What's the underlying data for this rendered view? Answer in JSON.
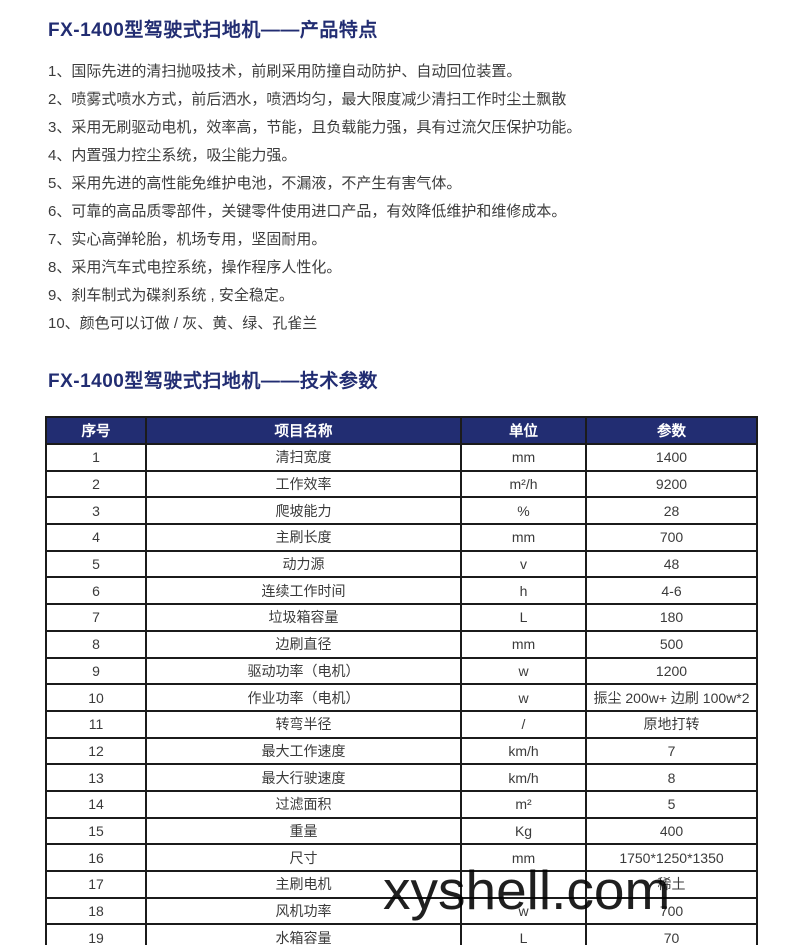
{
  "features": {
    "title": "FX-1400型驾驶式扫地机——产品特点",
    "items": [
      "1、国际先进的清扫抛吸技术，前刷采用防撞自动防护、自动回位装置。",
      "2、喷雾式喷水方式，前后洒水，喷洒均匀，最大限度减少清扫工作时尘土飘散",
      "3、采用无刷驱动电机，效率高，节能，且负载能力强，具有过流欠压保护功能。",
      "4、内置强力控尘系统，吸尘能力强。",
      "5、采用先进的高性能免维护电池，不漏液，不产生有害气体。",
      "6、可靠的高品质零部件，关键零件使用进口产品，有效降低维护和维修成本。",
      "7、实心高弹轮胎，机场专用，坚固耐用。",
      "8、采用汽车式电控系统，操作程序人性化。",
      "9、刹车制式为碟刹系统 , 安全稳定。",
      "10、颜色可以订做 / 灰、黄、绿、孔雀兰"
    ]
  },
  "specs": {
    "title": "FX-1400型驾驶式扫地机——技术参数",
    "table": {
      "headers": [
        "序号",
        "项目名称",
        "单位",
        "参数"
      ],
      "rows": [
        [
          "1",
          "清扫宽度",
          "mm",
          "1400"
        ],
        [
          "2",
          "工作效率",
          "m²/h",
          "9200"
        ],
        [
          "3",
          "爬坡能力",
          "%",
          "28"
        ],
        [
          "4",
          "主刷长度",
          "mm",
          "700"
        ],
        [
          "5",
          "动力源",
          "v",
          "48"
        ],
        [
          "6",
          "连续工作时间",
          "h",
          "4-6"
        ],
        [
          "7",
          "垃圾箱容量",
          "L",
          "180"
        ],
        [
          "8",
          "边刷直径",
          "mm",
          "500"
        ],
        [
          "9",
          "驱动功率（电机）",
          "w",
          "1200"
        ],
        [
          "10",
          "作业功率（电机）",
          "w",
          "振尘 200w+ 边刷 100w*2"
        ],
        [
          "11",
          "转弯半径",
          "/",
          "原地打转"
        ],
        [
          "12",
          "最大工作速度",
          "km/h",
          "7"
        ],
        [
          "13",
          "最大行驶速度",
          "km/h",
          "8"
        ],
        [
          "14",
          "过滤面积",
          "m²",
          "5"
        ],
        [
          "15",
          "重量",
          "Kg",
          "400"
        ],
        [
          "16",
          "尺寸",
          "mm",
          "1750*1250*1350"
        ],
        [
          "17",
          "主刷电机",
          "",
          "稀土"
        ],
        [
          "18",
          "风机功率",
          "w",
          "700"
        ],
        [
          "19",
          "水箱容量",
          "L",
          "70"
        ]
      ]
    }
  },
  "watermark": "xyshell.com",
  "colors": {
    "accent_navy": "#222d72",
    "body_text": "#3c3c3c",
    "table_border": "#1b1b1b"
  }
}
